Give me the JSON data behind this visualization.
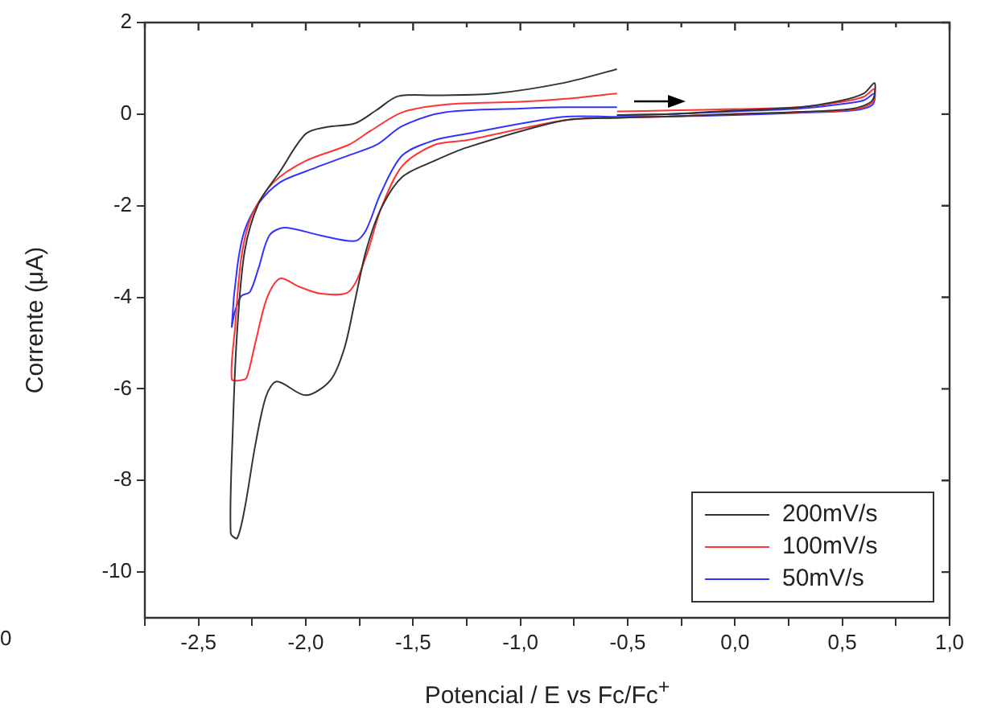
{
  "chart_data": {
    "type": "line",
    "xlabel": "Potencial / E vs Fc/Fc$^{+}$",
    "ylabel": "Corrente (μA)",
    "xlim": [
      -2.75,
      1.0
    ],
    "xticks": [
      {
        "value": -2.75,
        "label": null
      },
      {
        "value": -2.5,
        "label": "-2,5"
      },
      {
        "value": -2.25,
        "label": null
      },
      {
        "value": -2.0,
        "label": "-2,0"
      },
      {
        "value": -1.75,
        "label": null
      },
      {
        "value": -1.5,
        "label": "-1,5"
      },
      {
        "value": -1.25,
        "label": null
      },
      {
        "value": -1.0,
        "label": "-1,0"
      },
      {
        "value": -0.75,
        "label": null
      },
      {
        "value": -0.5,
        "label": "-0,5"
      },
      {
        "value": -0.25,
        "label": null
      },
      {
        "value": 0.0,
        "label": "0,0"
      },
      {
        "value": 0.25,
        "label": null
      },
      {
        "value": 0.5,
        "label": "0,5"
      },
      {
        "value": 0.75,
        "label": null
      },
      {
        "value": 1.0,
        "label": "1,0"
      }
    ],
    "ylim": [
      -11,
      2
    ],
    "yticks": [
      -10,
      -8,
      -6,
      -4,
      -2,
      0,
      2
    ],
    "grid": false,
    "legend": "bottom right",
    "marker": "none",
    "line_style": "solid",
    "annotations": [
      "0"
    ],
    "series": [
      {
        "name": "200mV/s",
        "color": "#333333",
        "x": [
          -0.55,
          -0.3,
          0.0,
          0.3,
          0.5,
          0.6,
          0.65,
          0.64,
          0.55,
          0.3,
          0.0,
          -0.3,
          -0.55,
          -0.8,
          -1.25,
          -1.4,
          -1.55,
          -1.65,
          -1.72,
          -1.77,
          -1.82,
          -1.885,
          -2.0,
          -2.135,
          -2.185,
          -2.235,
          -2.285,
          -2.32,
          -2.35,
          -2.34,
          -2.32,
          -2.285,
          -2.22,
          -2.12,
          -2.0,
          -1.9,
          -1.77,
          -1.67,
          -1.57,
          -1.4,
          -1.12,
          -0.8,
          -0.55
        ],
        "values": [
          -0.02,
          0.0,
          0.08,
          0.15,
          0.3,
          0.45,
          0.68,
          0.3,
          0.12,
          0.05,
          0.0,
          -0.05,
          -0.08,
          -0.14,
          -0.73,
          -1.02,
          -1.37,
          -2.07,
          -3.0,
          -4.06,
          -5.11,
          -5.81,
          -6.14,
          -5.84,
          -6.16,
          -7.22,
          -8.62,
          -9.26,
          -9.15,
          -6.87,
          -4.76,
          -3.0,
          -1.95,
          -1.25,
          -0.43,
          -0.28,
          -0.2,
          0.09,
          0.39,
          0.41,
          0.45,
          0.68,
          0.98
        ]
      },
      {
        "name": "100mV/s",
        "color": "#ff3333",
        "x": [
          -0.55,
          -0.3,
          0.0,
          0.3,
          0.5,
          0.6,
          0.65,
          0.64,
          0.55,
          0.3,
          0.0,
          -0.3,
          -0.55,
          -0.8,
          -1.25,
          -1.4,
          -1.55,
          -1.65,
          -1.72,
          -1.8,
          -1.93,
          -2.03,
          -2.12,
          -2.18,
          -2.235,
          -2.275,
          -2.3,
          -2.345,
          -2.33,
          -2.3,
          -2.25,
          -2.15,
          -2.0,
          -1.8,
          -1.7,
          -1.55,
          -1.35,
          -1.0,
          -0.8,
          -0.55
        ],
        "values": [
          0.06,
          0.08,
          0.11,
          0.15,
          0.27,
          0.38,
          0.55,
          0.25,
          0.1,
          0.04,
          0.0,
          -0.05,
          -0.08,
          -0.14,
          -0.57,
          -0.67,
          -1.13,
          -2.07,
          -3.12,
          -3.88,
          -3.92,
          -3.77,
          -3.59,
          -4.0,
          -4.99,
          -5.75,
          -5.81,
          -5.79,
          -4.68,
          -3.12,
          -2.19,
          -1.49,
          -1.02,
          -0.67,
          -0.37,
          0.04,
          0.21,
          0.27,
          0.33,
          0.45
        ]
      },
      {
        "name": "50mV/s",
        "color": "#3333ff",
        "x": [
          -0.55,
          -0.3,
          0.0,
          0.3,
          0.5,
          0.6,
          0.65,
          0.64,
          0.55,
          0.3,
          0.0,
          -0.3,
          -0.55,
          -0.8,
          -1.25,
          -1.4,
          -1.55,
          -1.65,
          -1.72,
          -1.77,
          -1.93,
          -2.1,
          -2.17,
          -2.22,
          -2.26,
          -2.3,
          -2.33,
          -2.345,
          -2.32,
          -2.285,
          -2.22,
          -2.12,
          -2.0,
          -1.8,
          -1.67,
          -1.55,
          -1.35,
          -1.0,
          -0.8,
          -0.55
        ],
        "values": [
          -0.02,
          0.0,
          0.06,
          0.12,
          0.22,
          0.3,
          0.45,
          0.2,
          0.08,
          0.03,
          -0.02,
          -0.05,
          -0.06,
          -0.06,
          -0.43,
          -0.57,
          -0.9,
          -1.72,
          -2.54,
          -2.77,
          -2.65,
          -2.48,
          -2.65,
          -3.36,
          -3.88,
          -3.97,
          -4.3,
          -4.64,
          -3.36,
          -2.54,
          -1.95,
          -1.49,
          -1.25,
          -0.9,
          -0.67,
          -0.26,
          0.04,
          0.12,
          0.15,
          0.15
        ]
      }
    ]
  }
}
